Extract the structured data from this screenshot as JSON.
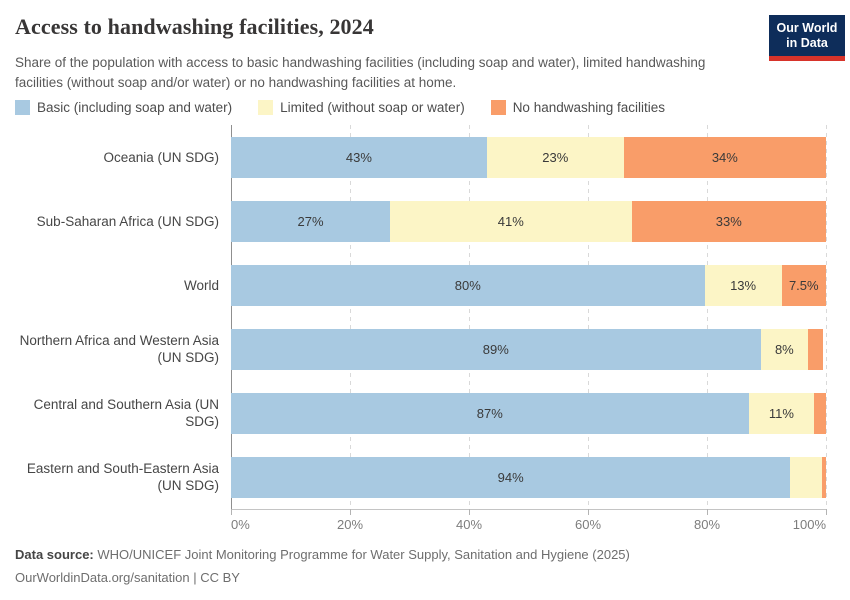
{
  "header": {
    "title": "Access to handwashing facilities, 2024",
    "subtitle": "Share of the population with access to basic handwashing facilities (including soap and water), limited handwashing facilities (without soap and/or water) or no handwashing facilities at home."
  },
  "logo": {
    "line1": "Our World",
    "line2": "in Data",
    "bg_color": "#0e2d5a",
    "underline_color": "#d7332a"
  },
  "chart_data": {
    "type": "bar",
    "subtype": "horizontal-stacked",
    "unit": "%",
    "categories": [
      "Oceania (UN SDG)",
      "Sub-Saharan Africa (UN SDG)",
      "World",
      "Northern Africa and Western Asia (UN SDG)",
      "Central and Southern Asia (UN SDG)",
      "Eastern and South-Eastern Asia (UN SDG)"
    ],
    "series": [
      {
        "name": "Basic (including soap and water)",
        "key": "basic",
        "color": "#a8c9e1",
        "values": [
          43,
          27,
          80,
          89,
          87,
          94
        ],
        "labels": [
          "43%",
          "27%",
          "80%",
          "89%",
          "87%",
          "94%"
        ]
      },
      {
        "name": "Limited (without soap or water)",
        "key": "limited",
        "color": "#fcf5c6",
        "values": [
          23,
          41,
          13,
          8,
          11,
          5.3
        ],
        "labels": [
          "23%",
          "41%",
          "13%",
          "8%",
          "11%",
          ""
        ]
      },
      {
        "name": "No handwashing facilities",
        "key": "none",
        "color": "#f99d69",
        "values": [
          34,
          33,
          7.5,
          2.5,
          2,
          0.7
        ],
        "labels": [
          "34%",
          "33%",
          "7.5%",
          "",
          "",
          ""
        ]
      }
    ],
    "xlim": [
      0,
      100
    ],
    "x_ticks": [
      {
        "value": 0,
        "label": "0%"
      },
      {
        "value": 20,
        "label": "20%"
      },
      {
        "value": 40,
        "label": "40%"
      },
      {
        "value": 60,
        "label": "60%"
      },
      {
        "value": 80,
        "label": "80%"
      },
      {
        "value": 100,
        "label": "100%"
      }
    ],
    "grid": true,
    "legend_position": "top"
  },
  "footer": {
    "datasource_label": "Data source:",
    "datasource_text": " WHO/UNICEF Joint Monitoring Programme for Water Supply, Sanitation and Hygiene (2025)",
    "link": "OurWorldinData.org/sanitation",
    "license": " | CC BY"
  }
}
